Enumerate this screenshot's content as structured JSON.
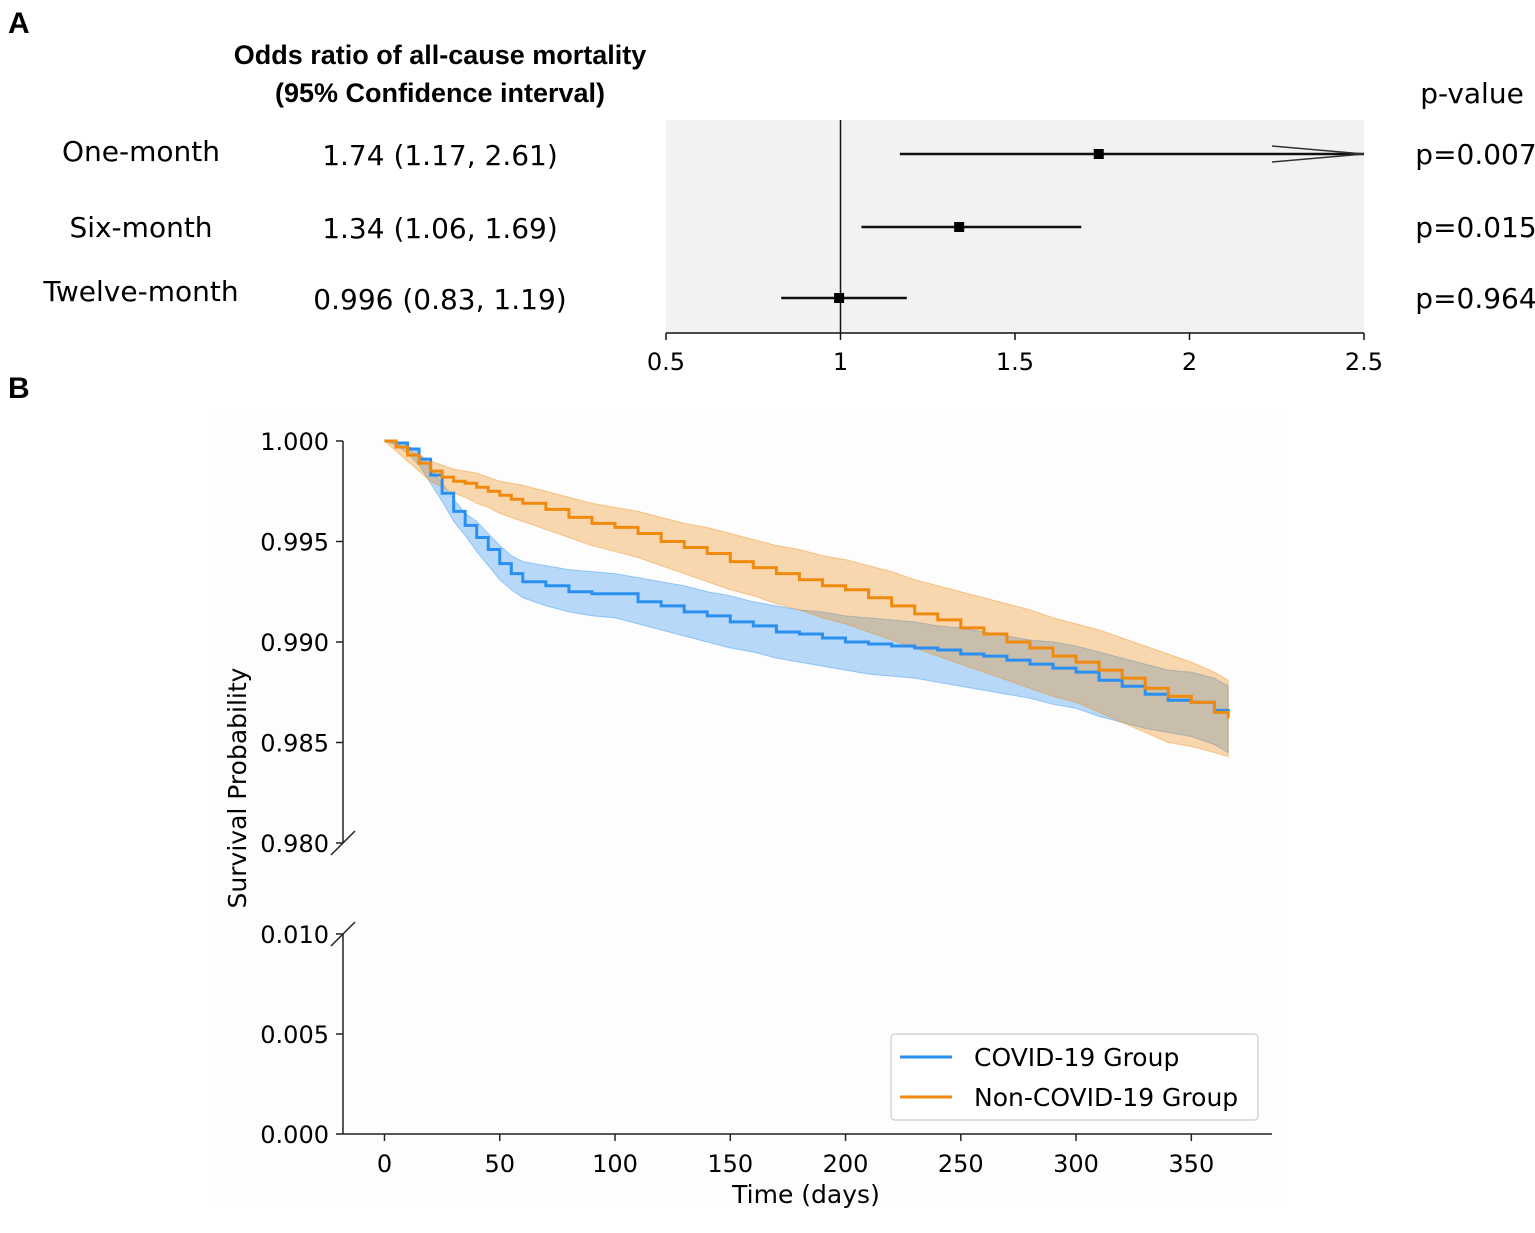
{
  "chart_data": [
    {
      "type": "forest",
      "panel_label": "A",
      "header_line1": "Odds ratio of all-cause mortality",
      "header_line2": "(95% Confidence interval)",
      "pvalue_header": "p-value",
      "reference_value": 1,
      "xlim": [
        0.5,
        2.5
      ],
      "xticks": [
        0.5,
        1,
        1.5,
        2,
        2.5
      ],
      "xtick_labels": [
        "0.5",
        "1",
        "1.5",
        "2",
        "2.5"
      ],
      "rows": [
        {
          "label": "One-month",
          "or": 1.74,
          "lo": 1.17,
          "hi": 2.61,
          "text": "1.74 (1.17, 2.61)",
          "p": "p=0.007",
          "clipped_hi": true
        },
        {
          "label": "Six-month",
          "or": 1.34,
          "lo": 1.06,
          "hi": 1.69,
          "text": "1.34 (1.06, 1.69)",
          "p": "p=0.015",
          "clipped_hi": false
        },
        {
          "label": "Twelve-month",
          "or": 0.996,
          "lo": 0.83,
          "hi": 1.19,
          "text": "0.996 (0.83, 1.19)",
          "p": "p=0.964",
          "clipped_hi": false
        }
      ],
      "colors": {
        "background": "#f2f2f2",
        "ink": "#111111"
      }
    },
    {
      "type": "line",
      "panel_label": "B",
      "xlabel": "Time (days)",
      "ylabel": "Survival Probability",
      "xlim": [
        -18,
        385
      ],
      "xticks": [
        0,
        50,
        100,
        150,
        200,
        250,
        300,
        350
      ],
      "upper_ylim": [
        0.98,
        1.0
      ],
      "upper_yticks": [
        "1.000",
        "0.995",
        "0.990",
        "0.985",
        "0.980"
      ],
      "lower_ylim": [
        0.0,
        0.01
      ],
      "lower_yticks": [
        "0.010",
        "0.005",
        "0.000"
      ],
      "legend_position": "lower-right",
      "series": [
        {
          "name": "COVID-19 Group",
          "color": "#2a8ff0",
          "x": [
            0,
            5,
            10,
            15,
            20,
            25,
            30,
            35,
            40,
            45,
            50,
            55,
            60,
            70,
            80,
            90,
            100,
            110,
            120,
            130,
            140,
            150,
            160,
            170,
            180,
            190,
            200,
            210,
            220,
            230,
            240,
            250,
            260,
            270,
            280,
            290,
            300,
            310,
            320,
            330,
            340,
            350,
            360,
            366
          ],
          "y": [
            1.0,
            0.9999,
            0.9996,
            0.9991,
            0.9983,
            0.9974,
            0.9965,
            0.9958,
            0.9952,
            0.9946,
            0.9939,
            0.9934,
            0.993,
            0.9928,
            0.9925,
            0.9924,
            0.9924,
            0.992,
            0.9918,
            0.9915,
            0.9913,
            0.991,
            0.9908,
            0.9905,
            0.9904,
            0.9902,
            0.99,
            0.9899,
            0.9898,
            0.9897,
            0.9896,
            0.9894,
            0.9893,
            0.9891,
            0.9889,
            0.9887,
            0.9885,
            0.9881,
            0.9878,
            0.9874,
            0.9871,
            0.987,
            0.9866,
            0.9864
          ],
          "ci_low": [
            1.0,
            0.9998,
            0.9994,
            0.9988,
            0.9979,
            0.997,
            0.996,
            0.9953,
            0.9945,
            0.9938,
            0.9931,
            0.9926,
            0.9922,
            0.9918,
            0.9915,
            0.9913,
            0.9912,
            0.9909,
            0.9906,
            0.9903,
            0.99,
            0.9897,
            0.9895,
            0.9892,
            0.989,
            0.9888,
            0.9886,
            0.9884,
            0.9883,
            0.9882,
            0.988,
            0.9878,
            0.9876,
            0.9874,
            0.9872,
            0.9869,
            0.9867,
            0.9863,
            0.986,
            0.9857,
            0.9855,
            0.9853,
            0.9849,
            0.9845
          ],
          "ci_high": [
            1.0,
            1.0,
            0.9998,
            0.9994,
            0.9987,
            0.9979,
            0.9971,
            0.9964,
            0.996,
            0.9954,
            0.9948,
            0.9943,
            0.994,
            0.9938,
            0.9936,
            0.9935,
            0.9934,
            0.9932,
            0.993,
            0.9928,
            0.9925,
            0.9923,
            0.992,
            0.9918,
            0.9916,
            0.9915,
            0.9913,
            0.9912,
            0.9911,
            0.991,
            0.9908,
            0.9907,
            0.9905,
            0.9903,
            0.9901,
            0.99,
            0.9898,
            0.9895,
            0.9892,
            0.9889,
            0.9886,
            0.9885,
            0.9882,
            0.9878
          ]
        },
        {
          "name": "Non-COVID-19 Group",
          "color": "#f08a0f",
          "x": [
            0,
            5,
            10,
            15,
            20,
            25,
            30,
            35,
            40,
            45,
            50,
            55,
            60,
            70,
            80,
            90,
            100,
            110,
            120,
            130,
            140,
            150,
            160,
            170,
            180,
            190,
            200,
            210,
            220,
            230,
            240,
            250,
            260,
            270,
            280,
            290,
            300,
            310,
            320,
            330,
            340,
            350,
            360,
            366
          ],
          "y": [
            1.0,
            0.9997,
            0.9993,
            0.9989,
            0.9985,
            0.9982,
            0.998,
            0.9979,
            0.9977,
            0.9975,
            0.9973,
            0.9971,
            0.9969,
            0.9966,
            0.9962,
            0.9959,
            0.9957,
            0.9954,
            0.995,
            0.9947,
            0.9944,
            0.994,
            0.9937,
            0.9934,
            0.9931,
            0.9928,
            0.9926,
            0.9922,
            0.9918,
            0.9914,
            0.9911,
            0.9907,
            0.9904,
            0.99,
            0.9897,
            0.9893,
            0.989,
            0.9886,
            0.9882,
            0.9877,
            0.9873,
            0.987,
            0.9865,
            0.9862
          ],
          "ci_low": [
            1.0,
            0.9995,
            0.999,
            0.9985,
            0.998,
            0.9977,
            0.9974,
            0.9972,
            0.9969,
            0.9967,
            0.9964,
            0.9962,
            0.996,
            0.9956,
            0.9952,
            0.9948,
            0.9945,
            0.9942,
            0.9938,
            0.9934,
            0.993,
            0.9926,
            0.9923,
            0.9919,
            0.9916,
            0.9912,
            0.9909,
            0.9905,
            0.9901,
            0.9897,
            0.9893,
            0.9889,
            0.9885,
            0.9881,
            0.9877,
            0.9873,
            0.987,
            0.9865,
            0.986,
            0.9855,
            0.985,
            0.9848,
            0.9845,
            0.9843
          ],
          "ci_high": [
            1.0,
            0.9999,
            0.9996,
            0.9993,
            0.999,
            0.9988,
            0.9986,
            0.9985,
            0.9984,
            0.9982,
            0.998,
            0.9979,
            0.9978,
            0.9975,
            0.9972,
            0.9969,
            0.9967,
            0.9965,
            0.9962,
            0.9959,
            0.9957,
            0.9954,
            0.9951,
            0.9948,
            0.9946,
            0.9943,
            0.9941,
            0.9938,
            0.9935,
            0.9931,
            0.9928,
            0.9925,
            0.9922,
            0.9919,
            0.9916,
            0.9912,
            0.9909,
            0.9906,
            0.9902,
            0.9898,
            0.9894,
            0.989,
            0.9885,
            0.9881
          ]
        }
      ]
    }
  ]
}
